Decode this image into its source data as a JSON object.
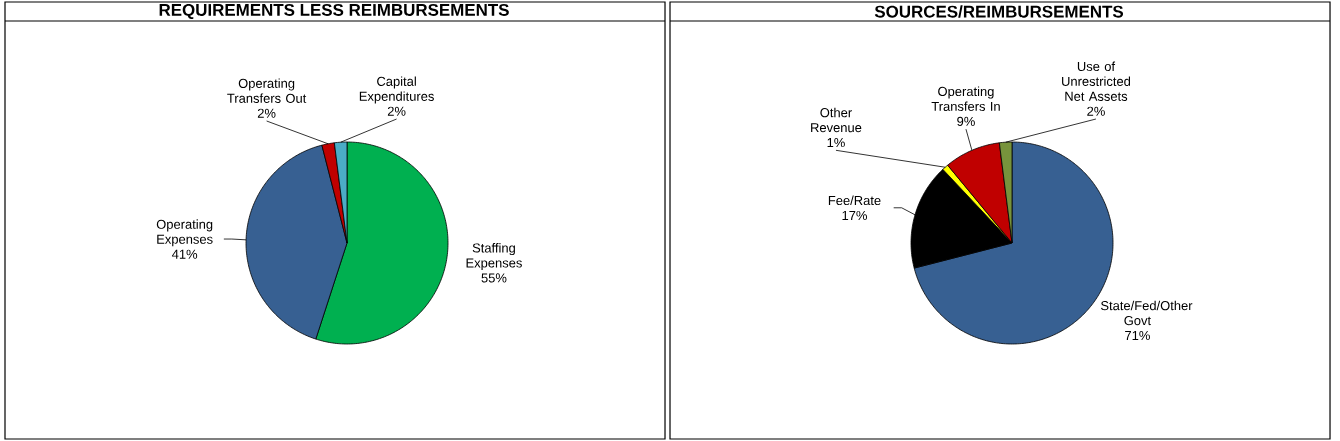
{
  "chart_data": [
    {
      "type": "pie",
      "title": "REQUIREMENTS LESS REIMBURSEMENTS",
      "categories": [
        "Staffing Expenses",
        "Operating Expenses",
        "Operating Transfers Out",
        "Capital Expenditures"
      ],
      "values": [
        55,
        41,
        2,
        2
      ],
      "colors": [
        "#00b050",
        "#376092",
        "#c00000",
        "#4bacc6"
      ],
      "value_labels": [
        "55%",
        "41%",
        "2%",
        "2%"
      ]
    },
    {
      "type": "pie",
      "title": "SOURCES/REIMBURSEMENTS",
      "categories": [
        "State/Fed/Other Govt",
        "Fee/Rate",
        "Other Revenue",
        "Operating Transfers In",
        "Use of Unrestricted Net Assets"
      ],
      "values": [
        71,
        17,
        1,
        9,
        2
      ],
      "colors": [
        "#376092",
        "#000000",
        "#ffff00",
        "#c00000",
        "#77933c"
      ],
      "value_labels": [
        "71%",
        "17%",
        "1%",
        "9%",
        "2%"
      ]
    }
  ]
}
